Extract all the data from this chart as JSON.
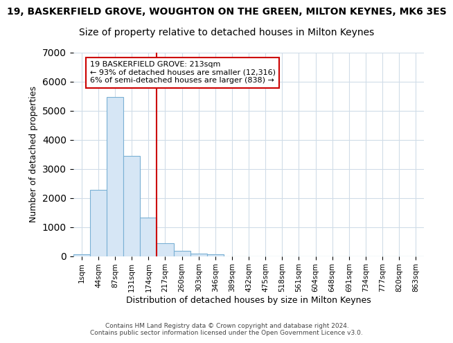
{
  "title": "19, BASKERFIELD GROVE, WOUGHTON ON THE GREEN, MILTON KEYNES, MK6 3ES",
  "subtitle": "Size of property relative to detached houses in Milton Keynes",
  "xlabel": "Distribution of detached houses by size in Milton Keynes",
  "ylabel": "Number of detached properties",
  "bar_color": "#d6e6f5",
  "bar_edge_color": "#7ab0d4",
  "bin_labels": [
    "1sqm",
    "44sqm",
    "87sqm",
    "131sqm",
    "174sqm",
    "217sqm",
    "260sqm",
    "303sqm",
    "346sqm",
    "389sqm",
    "432sqm",
    "475sqm",
    "518sqm",
    "561sqm",
    "604sqm",
    "648sqm",
    "691sqm",
    "734sqm",
    "777sqm",
    "820sqm",
    "863sqm"
  ],
  "bin_values": [
    70,
    2280,
    5460,
    3430,
    1330,
    450,
    190,
    90,
    70,
    0,
    0,
    0,
    0,
    0,
    0,
    0,
    0,
    0,
    0,
    0,
    0
  ],
  "ylim": [
    0,
    7000
  ],
  "vline_bin": 5,
  "vline_color": "#cc0000",
  "annotation_text": "19 BASKERFIELD GROVE: 213sqm\n← 93% of detached houses are smaller (12,316)\n6% of semi-detached houses are larger (838) →",
  "annotation_box_color": "white",
  "annotation_box_edge_color": "#cc0000",
  "footer1": "Contains HM Land Registry data © Crown copyright and database right 2024.",
  "footer2": "Contains public sector information licensed under the Open Government Licence v3.0.",
  "background_color": "white",
  "grid_color": "#d0dce8",
  "title_fontsize": 10,
  "subtitle_fontsize": 10
}
